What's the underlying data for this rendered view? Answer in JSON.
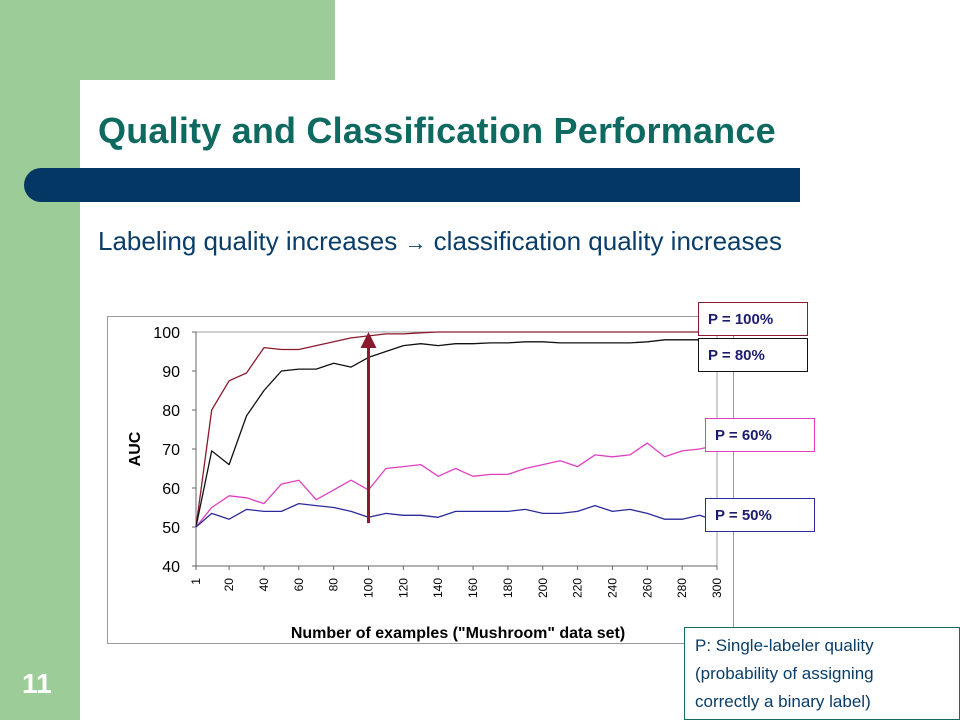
{
  "slide": {
    "title": "Quality and Classification Performance",
    "subtitle_before": "Labeling quality increases",
    "subtitle_after": "classification quality increases",
    "page_number": "11",
    "note_lines": [
      "P: Single-labeler quality",
      "(probability of assigning",
      "correctly a binary label)"
    ],
    "colors": {
      "green": "#9ccc98",
      "navy_bar": "#053764",
      "title_teal": "#0e6a60",
      "text_navy": "#0a3d68",
      "arrow": "#8b1a2e"
    }
  },
  "chart_data": {
    "type": "line",
    "title": "",
    "xlabel": "Number of examples (\"Mushroom\" data set)",
    "ylabel": "AUC",
    "ylim": [
      40,
      100
    ],
    "y_ticks": [
      "40",
      "50",
      "60",
      "70",
      "80",
      "90",
      "100"
    ],
    "x_ticks": [
      "1",
      "20",
      "40",
      "60",
      "80",
      "100",
      "120",
      "140",
      "160",
      "180",
      "200",
      "220",
      "240",
      "260",
      "280",
      "300"
    ],
    "x": [
      1,
      10,
      20,
      30,
      40,
      50,
      60,
      70,
      80,
      90,
      100,
      110,
      120,
      130,
      140,
      150,
      160,
      170,
      180,
      190,
      200,
      210,
      220,
      230,
      240,
      250,
      260,
      270,
      280,
      290,
      300
    ],
    "series": [
      {
        "name": "P = 100%",
        "color": "#8b1a2e",
        "values": [
          50,
          80,
          87.5,
          89.5,
          96,
          95.5,
          95.5,
          96.5,
          97.5,
          98.5,
          99,
          99.5,
          99.5,
          99.8,
          100,
          100,
          100,
          100,
          100,
          100,
          100,
          100,
          100,
          100,
          100,
          100,
          100,
          100,
          100,
          100,
          100
        ]
      },
      {
        "name": "P = 80%",
        "color": "#111111",
        "values": [
          50,
          69.5,
          66,
          78.5,
          85,
          90,
          90.5,
          90.5,
          92,
          91,
          93.5,
          95,
          96.5,
          97,
          96.5,
          97,
          97,
          97.2,
          97.2,
          97.5,
          97.5,
          97.2,
          97.2,
          97.2,
          97.2,
          97.2,
          97.5,
          98,
          98,
          98,
          98.2
        ]
      },
      {
        "name": "P = 60%",
        "color": "#e040c0",
        "values": [
          50,
          55,
          58,
          57.5,
          56,
          61,
          62,
          57,
          59.5,
          62,
          59.5,
          65,
          65.5,
          66,
          63,
          65,
          63,
          63.5,
          63.5,
          65,
          66,
          67,
          65.5,
          68.5,
          68,
          68.5,
          71.5,
          68,
          69.5,
          70,
          71
        ]
      },
      {
        "name": "P = 50%",
        "color": "#2a2a9c",
        "values": [
          50,
          53.5,
          52,
          54.5,
          54,
          54,
          56,
          55.5,
          55,
          54,
          52.5,
          53.5,
          53,
          53,
          52.5,
          54,
          54,
          54,
          54,
          54.5,
          53.5,
          53.5,
          54,
          55.5,
          54,
          54.5,
          53.5,
          52,
          52,
          53,
          51.5
        ]
      }
    ],
    "annotation": "arrow at x = 100 from the P = 50% curve up to the P = 100% curve",
    "arrow_x": 100,
    "arrow_from": 51,
    "arrow_to": 99.5,
    "grid": false,
    "legend": "right side, boxed labels next to each line end"
  }
}
